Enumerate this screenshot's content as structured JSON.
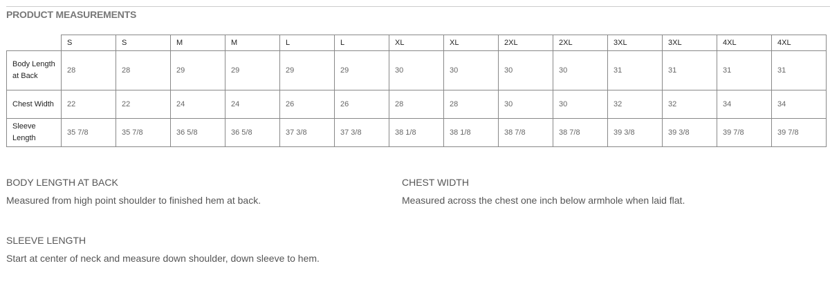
{
  "title": "PRODUCT MEASUREMENTS",
  "table": {
    "sizes": [
      "S",
      "S",
      "M",
      "M",
      "L",
      "L",
      "XL",
      "XL",
      "2XL",
      "2XL",
      "3XL",
      "3XL",
      "4XL",
      "4XL"
    ],
    "rows": [
      {
        "label": "Body Length at Back",
        "values": [
          "28",
          "28",
          "29",
          "29",
          "29",
          "29",
          "30",
          "30",
          "30",
          "30",
          "31",
          "31",
          "31",
          "31"
        ]
      },
      {
        "label": "Chest Width",
        "values": [
          "22",
          "22",
          "24",
          "24",
          "26",
          "26",
          "28",
          "28",
          "30",
          "30",
          "32",
          "32",
          "34",
          "34"
        ]
      },
      {
        "label": "Sleeve Length",
        "values": [
          "35 7/8",
          "35 7/8",
          "36 5/8",
          "36 5/8",
          "37 3/8",
          "37 3/8",
          "38 1/8",
          "38 1/8",
          "38 7/8",
          "38 7/8",
          "39 3/8",
          "39 3/8",
          "39 7/8",
          "39 7/8"
        ]
      }
    ]
  },
  "sections": [
    {
      "title": "BODY LENGTH AT BACK",
      "desc": "Measured from high point shoulder to finished hem at back."
    },
    {
      "title": "CHEST WIDTH",
      "desc": "Measured across the chest one inch below armhole when laid flat."
    },
    {
      "title": "SLEEVE LENGTH",
      "desc": "Start at center of neck and measure down shoulder, down sleeve to hem."
    }
  ]
}
